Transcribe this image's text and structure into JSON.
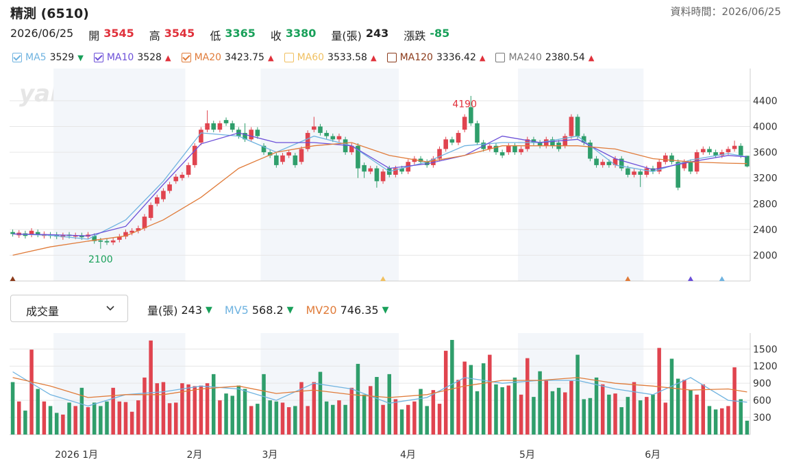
{
  "header": {
    "title": "精測 (6510)",
    "time_label": "資料時間：2026/06/25",
    "date": "2026/06/25",
    "quote": [
      {
        "label": "開",
        "value": 3545,
        "color": "#e0313b"
      },
      {
        "label": "高",
        "value": 3545,
        "color": "#e0313b"
      },
      {
        "label": "低",
        "value": 3365,
        "color": "#19a05a"
      },
      {
        "label": "收",
        "value": 3380,
        "color": "#19a05a"
      },
      {
        "label": "量(張)",
        "value": 243,
        "color": "#222222"
      },
      {
        "label": "漲跌",
        "value": -85,
        "color": "#19a05a"
      }
    ]
  },
  "chart_data": [
    {
      "type": "candlestick",
      "watermark": "yahoo!股市",
      "up_color": "#e0444f",
      "down_color": "#2f9e6b",
      "ylim": [
        1600,
        4900
      ],
      "yticks": [
        2000,
        2400,
        2800,
        3200,
        3600,
        4000,
        4400
      ],
      "grid": true,
      "annotations": [
        {
          "bar": 72,
          "field": "high",
          "color": "#e0313b"
        },
        {
          "bar": 14,
          "field": "low",
          "color": "#19a05a"
        }
      ],
      "legend": [
        {
          "name": "MA5",
          "value": 3529,
          "trend": "▼",
          "trend_color": "#19a05a",
          "color": "#6fb3e0",
          "checked": true
        },
        {
          "name": "MA10",
          "value": 3528,
          "trend": "▲",
          "trend_color": "#e0313b",
          "color": "#6b4fd8",
          "checked": true
        },
        {
          "name": "MA20",
          "value": 3423.75,
          "trend": "▲",
          "trend_color": "#e0313b",
          "color": "#e07b39",
          "checked": true
        },
        {
          "name": "MA60",
          "value": 3533.58,
          "trend": "▲",
          "trend_color": "#e0313b",
          "color": "#f0c060",
          "checked": false
        },
        {
          "name": "MA120",
          "value": 3336.42,
          "trend": "▲",
          "trend_color": "#e0313b",
          "color": "#8b3a1a",
          "checked": false
        },
        {
          "name": "MA240",
          "value": 2380.54,
          "trend": "▲",
          "trend_color": "#e0313b",
          "color": "#777777",
          "checked": false
        }
      ],
      "categories": [
        null,
        null,
        null,
        null,
        null,
        null,
        null,
        "2026 1月",
        null,
        null,
        null,
        null,
        null,
        null,
        null,
        null,
        null,
        null,
        null,
        null,
        null,
        null,
        null,
        null,
        null,
        null,
        null,
        null,
        "2月",
        null,
        null,
        null,
        null,
        null,
        null,
        null,
        null,
        null,
        null,
        null,
        "3月",
        null,
        null,
        null,
        null,
        null,
        null,
        null,
        null,
        null,
        null,
        null,
        null,
        null,
        null,
        null,
        null,
        null,
        null,
        null,
        null,
        null,
        "4月",
        null,
        null,
        null,
        null,
        null,
        null,
        null,
        null,
        null,
        null,
        null,
        null,
        null,
        null,
        null,
        null,
        null,
        null,
        "5月",
        null,
        null,
        null,
        null,
        null,
        null,
        null,
        null,
        null,
        null,
        null,
        null,
        null,
        null,
        null,
        null,
        null,
        null,
        null,
        "6月",
        null,
        null,
        null,
        null,
        null,
        null,
        null,
        null,
        null,
        null,
        null,
        null,
        null,
        null,
        null,
        null
      ],
      "open": [
        2360,
        2310,
        2340,
        2320,
        2360,
        2300,
        2320,
        2320,
        2280,
        2320,
        2290,
        2310,
        2290,
        2300,
        2230,
        2220,
        2200,
        2240,
        2290,
        2350,
        2380,
        2420,
        2580,
        2800,
        2870,
        3000,
        3150,
        3200,
        3250,
        3400,
        3750,
        3950,
        4050,
        3950,
        4100,
        4050,
        3950,
        3900,
        3800,
        3950,
        3700,
        3600,
        3550,
        3450,
        3550,
        3550,
        3450,
        3650,
        3950,
        4000,
        3900,
        3850,
        3800,
        3800,
        3600,
        3700,
        3400,
        3300,
        3350,
        3150,
        3350,
        3250,
        3350,
        3300,
        3450,
        3500,
        3450,
        3400,
        3500,
        3650,
        3800,
        3750,
        3950,
        4300,
        4050,
        3750,
        3650,
        3700,
        3600,
        3600,
        3700,
        3600,
        3650,
        3800,
        3750,
        3700,
        3800,
        3750,
        3700,
        3850,
        4150,
        3850,
        3750,
        3500,
        3400,
        3450,
        3400,
        3500,
        3350,
        3250,
        3300,
        3250,
        3350,
        3300,
        3450,
        3550,
        3450,
        3350,
        3450,
        3300,
        3600,
        3650,
        3600,
        3550,
        3600,
        3650,
        3700,
        3545
      ],
      "high": [
        2400,
        2390,
        2380,
        2420,
        2400,
        2370,
        2360,
        2360,
        2350,
        2360,
        2350,
        2350,
        2360,
        2340,
        2270,
        2260,
        2270,
        2330,
        2400,
        2420,
        2460,
        2640,
        2820,
        2940,
        3040,
        3140,
        3260,
        3290,
        3440,
        3740,
        3990,
        4250,
        4090,
        4090,
        4140,
        4090,
        3990,
        4050,
        3990,
        3990,
        3740,
        3640,
        3590,
        3590,
        3640,
        3590,
        3690,
        3940,
        4150,
        4040,
        3940,
        3890,
        3890,
        3840,
        3740,
        3740,
        3440,
        3390,
        3390,
        3340,
        3390,
        3390,
        3390,
        3490,
        3540,
        3540,
        3490,
        3540,
        3690,
        3840,
        3840,
        3940,
        4190,
        4475,
        4090,
        3790,
        3740,
        3740,
        3640,
        3740,
        3740,
        3690,
        3840,
        3840,
        3790,
        3840,
        3840,
        3790,
        3890,
        4190,
        4190,
        3890,
        3790,
        3540,
        3490,
        3490,
        3540,
        3540,
        3390,
        3340,
        3340,
        3390,
        3390,
        3490,
        3590,
        3590,
        3490,
        3490,
        3490,
        3640,
        3690,
        3690,
        3640,
        3640,
        3690,
        3780,
        3740,
        3545
      ],
      "low": [
        2290,
        2270,
        2260,
        2280,
        2280,
        2260,
        2260,
        2250,
        2240,
        2260,
        2250,
        2240,
        2250,
        2180,
        2100,
        2160,
        2160,
        2200,
        2250,
        2310,
        2340,
        2380,
        2540,
        2760,
        2830,
        2960,
        3110,
        3160,
        3210,
        3360,
        3710,
        3910,
        3910,
        3910,
        4010,
        3910,
        3810,
        3760,
        3760,
        3810,
        3560,
        3510,
        3360,
        3410,
        3510,
        3360,
        3410,
        3610,
        3910,
        3860,
        3810,
        3760,
        3760,
        3560,
        3560,
        3200,
        3200,
        3260,
        3050,
        3110,
        3210,
        3210,
        3260,
        3260,
        3410,
        3410,
        3360,
        3360,
        3460,
        3610,
        3710,
        3710,
        3910,
        4010,
        3710,
        3610,
        3610,
        3560,
        3510,
        3560,
        3560,
        3560,
        3610,
        3710,
        3660,
        3660,
        3660,
        3610,
        3660,
        3810,
        3810,
        3710,
        3460,
        3360,
        3360,
        3360,
        3360,
        3310,
        3210,
        3210,
        3060,
        3210,
        3260,
        3260,
        3410,
        3410,
        3010,
        3310,
        3260,
        3260,
        3560,
        3560,
        3510,
        3510,
        3560,
        3610,
        3510,
        3365
      ],
      "close": [
        2330,
        2350,
        2300,
        2380,
        2320,
        2330,
        2300,
        2290,
        2310,
        2300,
        2310,
        2280,
        2320,
        2220,
        2210,
        2200,
        2230,
        2290,
        2360,
        2380,
        2420,
        2600,
        2780,
        2900,
        3000,
        3100,
        3220,
        3250,
        3400,
        3700,
        3950,
        4050,
        3950,
        4050,
        4050,
        3950,
        3850,
        3800,
        3950,
        3850,
        3600,
        3550,
        3400,
        3550,
        3600,
        3400,
        3650,
        3900,
        4000,
        3900,
        3850,
        3800,
        3850,
        3600,
        3700,
        3350,
        3300,
        3350,
        3150,
        3300,
        3250,
        3350,
        3300,
        3450,
        3500,
        3450,
        3400,
        3500,
        3650,
        3800,
        3750,
        3900,
        4150,
        4050,
        3750,
        3650,
        3700,
        3600,
        3550,
        3700,
        3600,
        3650,
        3800,
        3750,
        3700,
        3800,
        3700,
        3650,
        3850,
        4150,
        3850,
        3750,
        3500,
        3400,
        3450,
        3400,
        3500,
        3350,
        3250,
        3300,
        3250,
        3350,
        3300,
        3450,
        3550,
        3450,
        3050,
        3450,
        3300,
        3600,
        3650,
        3600,
        3550,
        3600,
        3650,
        3700,
        3550,
        3380
      ],
      "series": [
        {
          "color": "#6fb3e0",
          "x": [
            0,
            6,
            12,
            18,
            24,
            30,
            36,
            42,
            48,
            54,
            60,
            66,
            72,
            78,
            84,
            90,
            96,
            102,
            108,
            114,
            117
          ],
          "values": [
            2330,
            2310,
            2250,
            2550,
            3150,
            3900,
            3850,
            3600,
            3850,
            3700,
            3300,
            3450,
            3700,
            3750,
            3750,
            3850,
            3400,
            3300,
            3480,
            3580,
            3529
          ]
        },
        {
          "color": "#6b4fd8",
          "x": [
            0,
            6,
            12,
            18,
            24,
            30,
            36,
            42,
            48,
            54,
            60,
            66,
            72,
            78,
            84,
            90,
            96,
            102,
            108,
            114,
            117
          ],
          "values": [
            2330,
            2320,
            2300,
            2450,
            3100,
            3730,
            3900,
            3750,
            3750,
            3700,
            3350,
            3420,
            3550,
            3850,
            3750,
            3800,
            3500,
            3330,
            3450,
            3550,
            3528
          ]
        },
        {
          "color": "#e07b39",
          "x": [
            0,
            6,
            12,
            18,
            24,
            30,
            36,
            42,
            48,
            54,
            60,
            66,
            72,
            78,
            84,
            90,
            96,
            102,
            108,
            114,
            117
          ],
          "values": [
            2000,
            2130,
            2220,
            2300,
            2550,
            2900,
            3350,
            3600,
            3700,
            3750,
            3550,
            3450,
            3550,
            3700,
            3700,
            3700,
            3650,
            3500,
            3450,
            3430,
            3423.75
          ]
        }
      ]
    },
    {
      "type": "bar",
      "dropdown": "成交量",
      "ylim": [
        0,
        1780
      ],
      "yticks": [
        300,
        600,
        900,
        1200,
        1500
      ],
      "grid": true,
      "legend": [
        {
          "name": "量(張)",
          "value": 243,
          "trend": "▼",
          "trend_color": "#19a05a",
          "color": "#222222"
        },
        {
          "name": "MV5",
          "value": 568.2,
          "trend": "▼",
          "trend_color": "#19a05a",
          "color": "#6fb3e0"
        },
        {
          "name": "MV20",
          "value": 746.35,
          "trend": "▼",
          "trend_color": "#19a05a",
          "color": "#e07b39"
        }
      ],
      "values": [
        920,
        580,
        420,
        1490,
        800,
        580,
        500,
        380,
        350,
        560,
        500,
        820,
        480,
        560,
        500,
        580,
        820,
        580,
        570,
        400,
        600,
        1000,
        1650,
        900,
        920,
        550,
        560,
        900,
        880,
        850,
        860,
        900,
        1060,
        600,
        720,
        680,
        860,
        800,
        500,
        540,
        1060,
        600,
        580,
        560,
        480,
        500,
        920,
        500,
        920,
        1100,
        580,
        520,
        600,
        520,
        820,
        1240,
        700,
        850,
        1010,
        520,
        1060,
        620,
        440,
        520,
        580,
        800,
        500,
        780,
        540,
        1470,
        1660,
        960,
        1280,
        1220,
        760,
        1250,
        1400,
        880,
        830,
        860,
        1000,
        700,
        1340,
        660,
        1110,
        960,
        760,
        820,
        740,
        940,
        1400,
        620,
        640,
        1000,
        880,
        700,
        720,
        480,
        660,
        920,
        600,
        660,
        700,
        1520,
        560,
        1330,
        980,
        960,
        780,
        700,
        880,
        500,
        440,
        460,
        500,
        1180,
        620,
        243
      ],
      "series": [
        {
          "color": "#6fb3e0",
          "x": [
            0,
            6,
            12,
            18,
            24,
            30,
            36,
            42,
            48,
            54,
            60,
            66,
            72,
            78,
            84,
            90,
            96,
            102,
            108,
            114,
            117
          ],
          "values": [
            1100,
            700,
            500,
            700,
            750,
            850,
            800,
            600,
            900,
            800,
            550,
            650,
            1000,
            900,
            950,
            950,
            800,
            700,
            1000,
            600,
            568.2
          ]
        },
        {
          "color": "#e07b39",
          "x": [
            0,
            6,
            12,
            18,
            24,
            30,
            36,
            42,
            48,
            54,
            60,
            66,
            72,
            78,
            84,
            90,
            96,
            102,
            108,
            114,
            117
          ],
          "values": [
            1000,
            850,
            650,
            700,
            700,
            800,
            850,
            720,
            780,
            700,
            650,
            700,
            850,
            950,
            950,
            1000,
            900,
            850,
            780,
            800,
            746.35
          ]
        }
      ]
    }
  ]
}
